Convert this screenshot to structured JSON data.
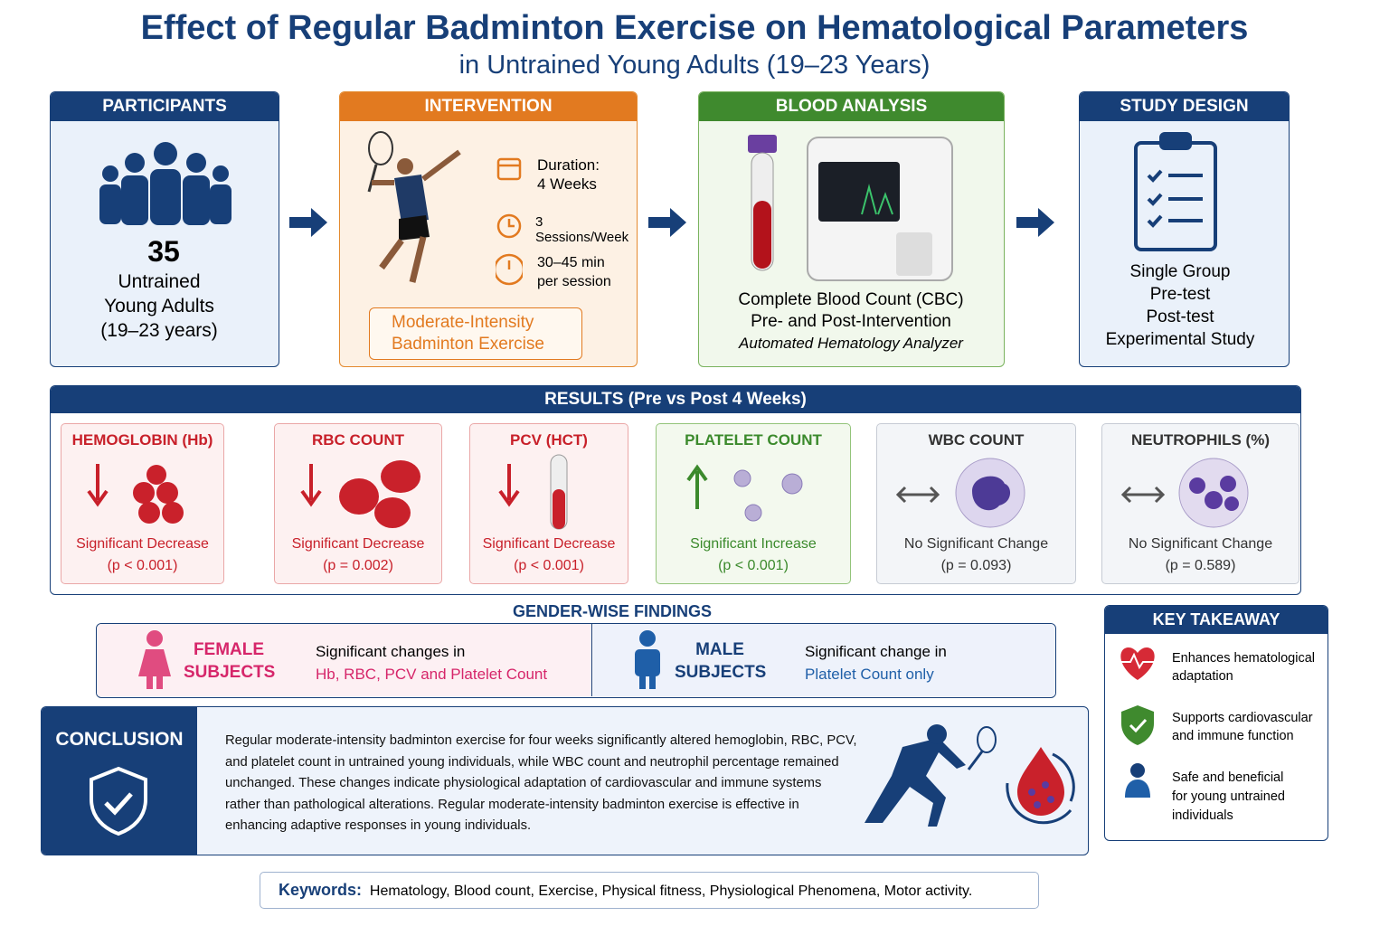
{
  "header": {
    "title": "Effect of Regular Badminton Exercise on Hematological Parameters",
    "subtitle": "in Untrained Young Adults (19–23 Years)"
  },
  "participants": {
    "heading": "PARTICIPANTS",
    "count": 35,
    "lines": [
      "Untrained",
      "Young Adults",
      "(19–23 years)"
    ]
  },
  "intervention": {
    "heading": "INTERVENTION",
    "items": [
      [
        "Duration:",
        "4 Weeks"
      ],
      [
        "3 Sessions/Week"
      ],
      [
        "30–45 min",
        "per session"
      ]
    ],
    "label": [
      "Moderate-Intensity",
      "Badminton Exercise"
    ]
  },
  "blood_analysis": {
    "heading": "BLOOD ANALYSIS",
    "lines": [
      "Complete Blood Count (CBC)",
      "Pre- and Post-Intervention",
      "Automated Hematology Analyzer"
    ]
  },
  "study_design": {
    "heading": "STUDY DESIGN",
    "lines": [
      "Single Group",
      "Pre-test",
      "Post-test",
      "Experimental Study"
    ]
  },
  "results": {
    "heading": "RESULTS (Pre vs Post 4 Weeks)",
    "cards": [
      {
        "name": "HEMOGLOBIN (Hb)",
        "effect": "Significant Decrease",
        "p": "(p < 0.001)"
      },
      {
        "name": "RBC COUNT",
        "effect": "Significant Decrease",
        "p": "(p = 0.002)"
      },
      {
        "name": "PCV (HCT)",
        "effect": "Significant Decrease",
        "p": "(p < 0.001)"
      },
      {
        "name": "PLATELET COUNT",
        "effect": "Significant Increase",
        "p": "(p < 0.001)"
      },
      {
        "name": "WBC COUNT",
        "effect": "No Significant Change",
        "p": "(p = 0.093)"
      },
      {
        "name": "NEUTROPHILS (%)",
        "effect": "No Significant Change",
        "p": "(p = 0.589)"
      }
    ]
  },
  "gender": {
    "heading": "GENDER-WISE FINDINGS",
    "groups": [
      {
        "label": [
          "FEMALE",
          "SUBJECTS"
        ],
        "text": [
          "Significant changes in",
          "Hb, RBC, PCV and Platelet Count"
        ]
      },
      {
        "label": [
          "MALE",
          "SUBJECTS"
        ],
        "text": [
          "Significant change in",
          "Platelet Count only"
        ]
      }
    ]
  },
  "key_takeaway": {
    "heading": "KEY TAKEAWAY",
    "items": [
      [
        "Enhances hematological",
        "adaptation"
      ],
      [
        "Supports cardiovascular",
        "and immune function"
      ],
      [
        "Safe and beneficial",
        "for young untrained",
        "individuals"
      ]
    ]
  },
  "conclusion": {
    "heading": "CONCLUSION",
    "lines": [
      "Regular moderate-intensity badminton exercise for four weeks significantly altered hemoglobin, RBC, PCV,",
      "and platelet count in untrained young individuals, while WBC count and neutrophil percentage remained",
      "unchanged. These changes indicate physiological adaptation of cardiovascular and immune systems",
      "rather than pathological alterations. Regular moderate-intensity badminton exercise is effective in",
      "enhancing adaptive responses in young individuals."
    ]
  },
  "keywords": {
    "label": "Keywords:",
    "text": "Hematology, Blood count, Exercise, Physical fitness, Physiological Phenomena, Motor activity."
  }
}
